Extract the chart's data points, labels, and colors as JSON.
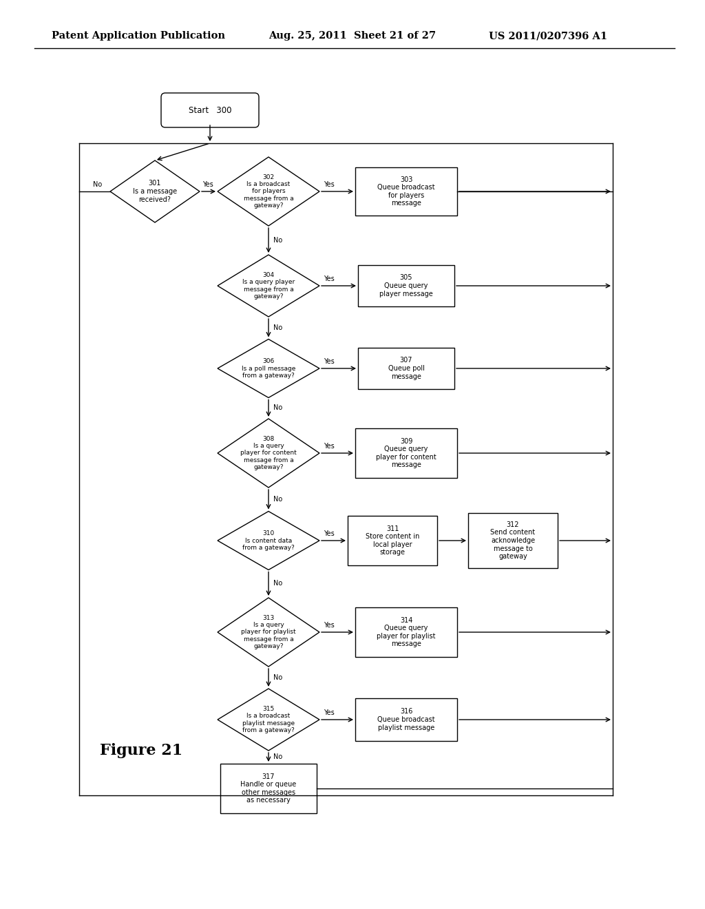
{
  "title_left": "Patent Application Publication",
  "title_mid": "Aug. 25, 2011  Sheet 21 of 27",
  "title_right": "US 2011/0207396 A1",
  "figure_label": "Figure 21",
  "bg_color": "#ffffff",
  "line_color": "#000000"
}
